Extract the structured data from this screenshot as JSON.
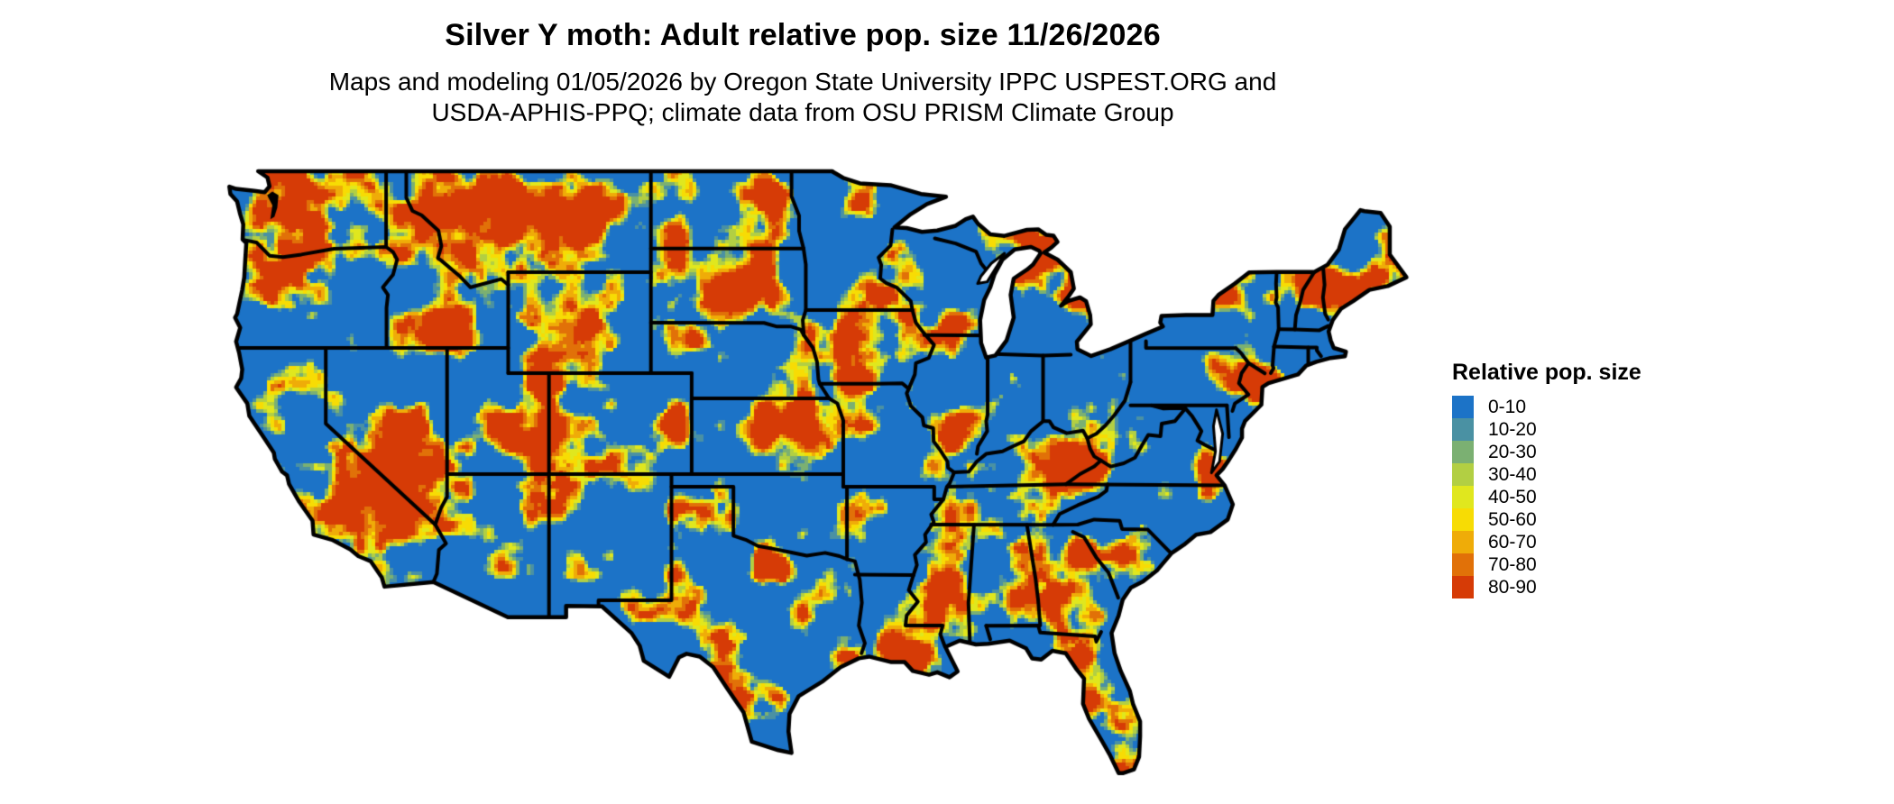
{
  "title": "Silver Y moth: Adult relative pop. size 11/26/2026",
  "subtitle": {
    "line1": "Maps and modeling 01/05/2026 by Oregon State University IPPC USPEST.ORG and",
    "line2": "USDA-APHIS-PPQ; climate data from OSU PRISM Climate Group"
  },
  "legend": {
    "title": "Relative pop. size",
    "entries": [
      {
        "label": "0-10",
        "color": "#1C73C7"
      },
      {
        "label": "10-20",
        "color": "#4A91A3"
      },
      {
        "label": "20-30",
        "color": "#7BB072"
      },
      {
        "label": "30-40",
        "color": "#B2CF43"
      },
      {
        "label": "40-50",
        "color": "#E0E71E"
      },
      {
        "label": "50-60",
        "color": "#F7DC04"
      },
      {
        "label": "60-70",
        "color": "#EFAC08"
      },
      {
        "label": "70-80",
        "color": "#E17108"
      },
      {
        "label": "80-90",
        "color": "#D63B06"
      }
    ]
  },
  "map": {
    "type": "raster-heatmap",
    "region": "Contiguous United States with state boundaries",
    "value_name": "Adult relative population size",
    "low_value_color": "#1C73C7",
    "high_value_color": "#D63B06",
    "boundary_color": "#000000",
    "background_color": "#ffffff"
  }
}
